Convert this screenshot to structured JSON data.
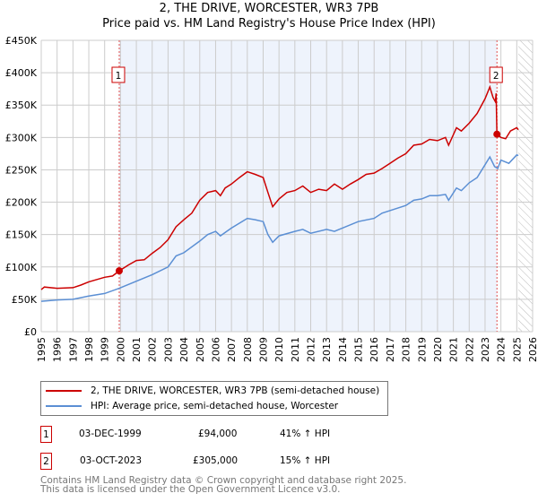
{
  "header": {
    "title": "2, THE DRIVE, WORCESTER, WR3 7PB",
    "subtitle": "Price paid vs. HM Land Registry's House Price Index (HPI)"
  },
  "chart_data": {
    "type": "line",
    "title": "2, THE DRIVE, WORCESTER, WR3 7PB",
    "subtitle": "Price paid vs. HM Land Registry's House Price Index (HPI)",
    "xlim": [
      1995,
      2026
    ],
    "ylim": [
      0,
      450000
    ],
    "x_ticks": [
      "1995",
      "1996",
      "1997",
      "1998",
      "1999",
      "2000",
      "2001",
      "2002",
      "2003",
      "2004",
      "2005",
      "2006",
      "2007",
      "2008",
      "2009",
      "2010",
      "2011",
      "2012",
      "2013",
      "2014",
      "2015",
      "2016",
      "2017",
      "2018",
      "2019",
      "2020",
      "2021",
      "2022",
      "2023",
      "2024",
      "2025",
      "2026"
    ],
    "y_ticks": [
      {
        "v": 0,
        "l": "£0"
      },
      {
        "v": 50000,
        "l": "£50K"
      },
      {
        "v": 100000,
        "l": "£100K"
      },
      {
        "v": 150000,
        "l": "£150K"
      },
      {
        "v": 200000,
        "l": "£200K"
      },
      {
        "v": 250000,
        "l": "£250K"
      },
      {
        "v": 300000,
        "l": "£300K"
      },
      {
        "v": 350000,
        "l": "£350K"
      },
      {
        "v": 400000,
        "l": "£400K"
      },
      {
        "v": 450000,
        "l": "£450K"
      }
    ],
    "grid": true,
    "shaded_range": [
      1999.92,
      2023.75
    ],
    "forecast_hatch_from": 2025.1,
    "series": [
      {
        "name": "2, THE DRIVE, WORCESTER, WR3 7PB (semi-detached house)",
        "color": "#cc0000",
        "points": [
          [
            1995,
            65000
          ],
          [
            1995.2,
            69000
          ],
          [
            1996,
            67000
          ],
          [
            1997,
            68000
          ],
          [
            1997.5,
            72000
          ],
          [
            1998,
            77000
          ],
          [
            1999,
            84000
          ],
          [
            1999.5,
            86000
          ],
          [
            1999.92,
            94000
          ],
          [
            2000.5,
            103000
          ],
          [
            2001,
            110000
          ],
          [
            2001.5,
            111000
          ],
          [
            2002,
            121000
          ],
          [
            2002.5,
            130000
          ],
          [
            2003,
            142000
          ],
          [
            2003.5,
            162000
          ],
          [
            2004,
            173000
          ],
          [
            2004.5,
            183000
          ],
          [
            2005,
            203000
          ],
          [
            2005.5,
            215000
          ],
          [
            2006,
            218000
          ],
          [
            2006.3,
            210000
          ],
          [
            2006.6,
            222000
          ],
          [
            2007,
            228000
          ],
          [
            2007.5,
            238000
          ],
          [
            2008,
            247000
          ],
          [
            2008.5,
            243000
          ],
          [
            2009,
            238000
          ],
          [
            2009.3,
            215000
          ],
          [
            2009.6,
            193000
          ],
          [
            2010,
            205000
          ],
          [
            2010.5,
            215000
          ],
          [
            2011,
            218000
          ],
          [
            2011.5,
            225000
          ],
          [
            2012,
            215000
          ],
          [
            2012.5,
            220000
          ],
          [
            2013,
            218000
          ],
          [
            2013.5,
            228000
          ],
          [
            2014,
            220000
          ],
          [
            2014.5,
            228000
          ],
          [
            2015,
            235000
          ],
          [
            2015.5,
            243000
          ],
          [
            2016,
            245000
          ],
          [
            2016.5,
            252000
          ],
          [
            2017,
            260000
          ],
          [
            2017.5,
            268000
          ],
          [
            2018,
            275000
          ],
          [
            2018.5,
            288000
          ],
          [
            2019,
            290000
          ],
          [
            2019.5,
            297000
          ],
          [
            2020,
            295000
          ],
          [
            2020.5,
            300000
          ],
          [
            2020.7,
            288000
          ],
          [
            2021.2,
            315000
          ],
          [
            2021.5,
            310000
          ],
          [
            2022,
            322000
          ],
          [
            2022.5,
            337000
          ],
          [
            2023,
            360000
          ],
          [
            2023.3,
            378000
          ],
          [
            2023.5,
            362000
          ],
          [
            2023.65,
            355000
          ],
          [
            2023.7,
            368000
          ],
          [
            2023.75,
            305000
          ],
          [
            2024,
            300000
          ],
          [
            2024.3,
            298000
          ],
          [
            2024.6,
            310000
          ],
          [
            2025,
            315000
          ],
          [
            2025.1,
            312000
          ]
        ]
      },
      {
        "name": "HPI: Average price, semi-detached house, Worcester",
        "color": "#5b8fd4",
        "points": [
          [
            1995,
            47000
          ],
          [
            1996,
            49000
          ],
          [
            1997,
            50000
          ],
          [
            1998,
            55000
          ],
          [
            1999,
            59000
          ],
          [
            1999.92,
            67000
          ],
          [
            2001,
            78000
          ],
          [
            2002,
            88000
          ],
          [
            2003,
            100000
          ],
          [
            2003.5,
            117000
          ],
          [
            2004,
            122000
          ],
          [
            2005,
            140000
          ],
          [
            2005.5,
            150000
          ],
          [
            2006,
            155000
          ],
          [
            2006.3,
            148000
          ],
          [
            2007,
            160000
          ],
          [
            2008,
            175000
          ],
          [
            2008.5,
            173000
          ],
          [
            2009,
            170000
          ],
          [
            2009.3,
            150000
          ],
          [
            2009.6,
            138000
          ],
          [
            2010,
            148000
          ],
          [
            2011,
            155000
          ],
          [
            2011.5,
            158000
          ],
          [
            2012,
            152000
          ],
          [
            2013,
            158000
          ],
          [
            2013.5,
            155000
          ],
          [
            2014,
            160000
          ],
          [
            2015,
            170000
          ],
          [
            2016,
            175000
          ],
          [
            2016.5,
            183000
          ],
          [
            2017,
            187000
          ],
          [
            2018,
            195000
          ],
          [
            2018.5,
            203000
          ],
          [
            2019,
            205000
          ],
          [
            2019.5,
            210000
          ],
          [
            2020,
            210000
          ],
          [
            2020.5,
            212000
          ],
          [
            2020.7,
            203000
          ],
          [
            2021.2,
            222000
          ],
          [
            2021.5,
            218000
          ],
          [
            2022,
            230000
          ],
          [
            2022.5,
            238000
          ],
          [
            2023,
            258000
          ],
          [
            2023.3,
            270000
          ],
          [
            2023.6,
            255000
          ],
          [
            2023.8,
            252000
          ],
          [
            2024,
            265000
          ],
          [
            2024.5,
            260000
          ],
          [
            2025,
            273000
          ],
          [
            2025.1,
            272000
          ]
        ]
      }
    ],
    "annotations": [
      {
        "label": "1",
        "x": 1999.92,
        "y": 94000
      },
      {
        "label": "2",
        "x": 2023.75,
        "y": 305000
      }
    ]
  },
  "legend": {
    "items": [
      "2, THE DRIVE, WORCESTER, WR3 7PB (semi-detached house)",
      "HPI: Average price, semi-detached house, Worcester"
    ]
  },
  "sales": [
    {
      "num": "1",
      "date": "03-DEC-1999",
      "price": "£94,000",
      "hpi": "41% ↑ HPI"
    },
    {
      "num": "2",
      "date": "03-OCT-2023",
      "price": "£305,000",
      "hpi": "15% ↑ HPI"
    }
  ],
  "footer": {
    "line1": "Contains HM Land Registry data © Crown copyright and database right 2025.",
    "line2": "This data is licensed under the Open Government Licence v3.0."
  }
}
